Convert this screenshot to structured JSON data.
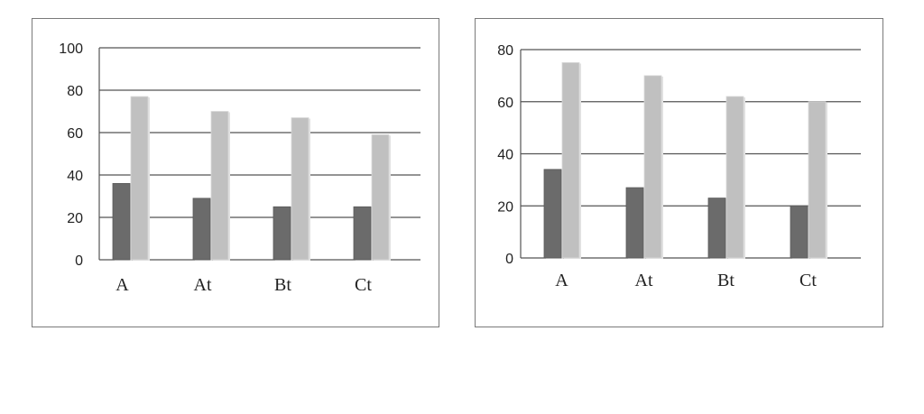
{
  "chart_data": [
    {
      "type": "bar",
      "categories": [
        "A",
        "At",
        "Bt",
        "Ct"
      ],
      "series": [
        {
          "values": [
            36,
            29,
            25,
            25
          ],
          "color": "#6b6b6b"
        },
        {
          "values": [
            77,
            70,
            67,
            59
          ],
          "color": "#c0c0c0"
        }
      ],
      "ylim": [
        0,
        100
      ],
      "yticks": [
        0,
        20,
        40,
        60,
        80,
        100
      ],
      "title": "",
      "xlabel": "",
      "ylabel": "",
      "grid": true
    },
    {
      "type": "bar",
      "categories": [
        "A",
        "At",
        "Bt",
        "Ct"
      ],
      "series": [
        {
          "values": [
            34,
            27,
            23,
            20
          ],
          "color": "#6b6b6b"
        },
        {
          "values": [
            75,
            70,
            62,
            60
          ],
          "color": "#c0c0c0"
        }
      ],
      "ylim": [
        0,
        80
      ],
      "yticks": [
        0,
        20,
        40,
        60,
        80
      ],
      "title": "",
      "xlabel": "",
      "ylabel": "",
      "grid": true
    }
  ]
}
